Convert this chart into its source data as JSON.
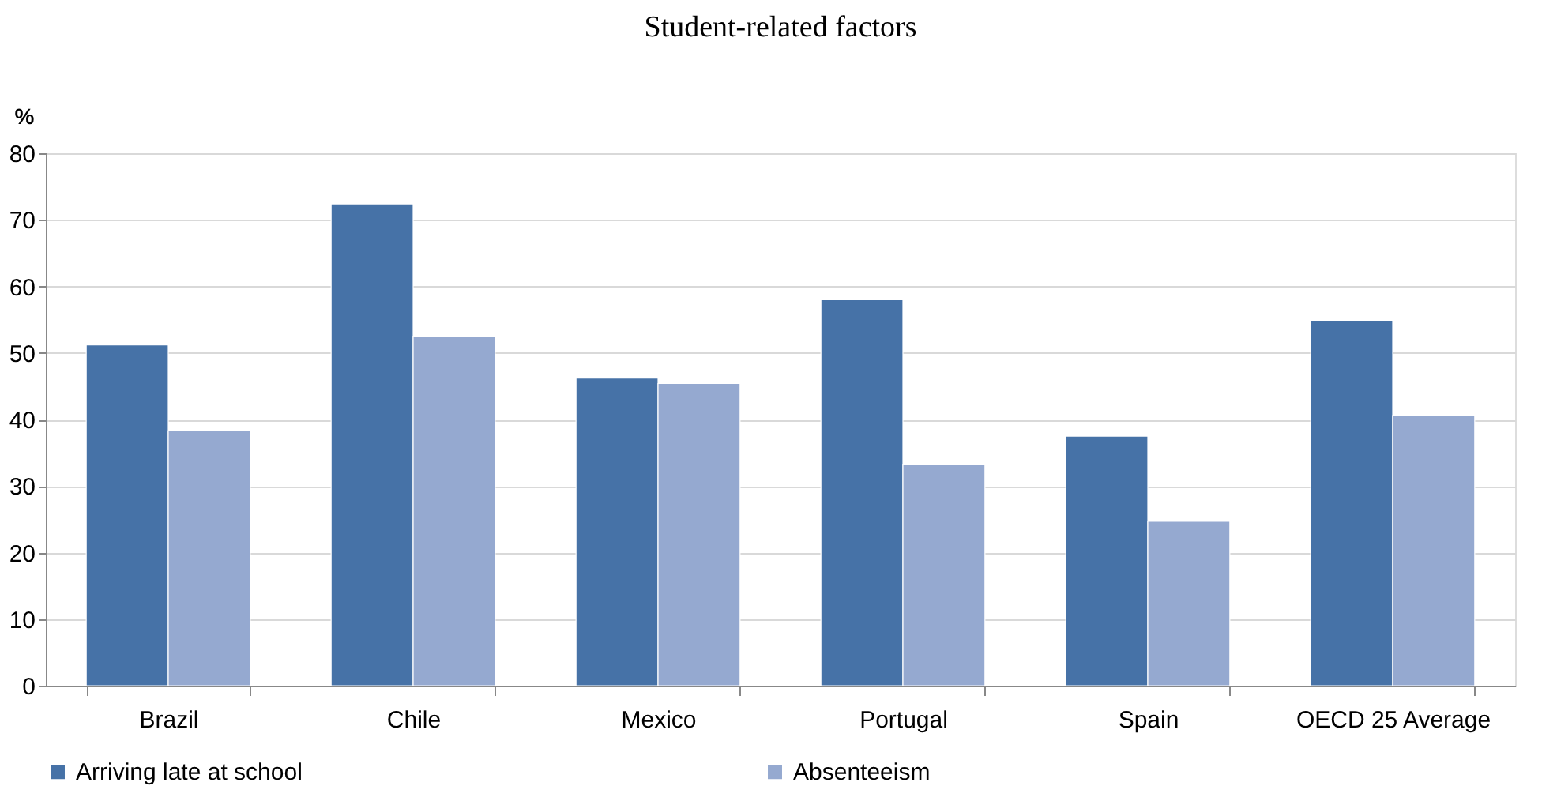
{
  "chart_data": {
    "type": "bar",
    "title": "Student-related factors",
    "ylabel": "%",
    "categories": [
      "Brazil",
      "Chile",
      "Mexico",
      "Portugal",
      "Spain",
      "OECD 25 Average"
    ],
    "series": [
      {
        "name": "Arriving late at school",
        "color": "#4672a7",
        "values": [
          51.2,
          72.4,
          46.2,
          58.0,
          37.5,
          54.9
        ]
      },
      {
        "name": "Absenteeism",
        "color": "#95a9d0",
        "values": [
          38.3,
          52.5,
          45.4,
          33.2,
          24.7,
          40.6
        ]
      }
    ],
    "ylim": [
      0,
      80
    ],
    "yticks": [
      0,
      10,
      20,
      30,
      40,
      50,
      60,
      70,
      80
    ],
    "grid": "y",
    "legend": "bottom"
  }
}
